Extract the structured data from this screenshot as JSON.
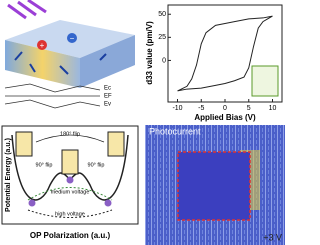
{
  "band_diagram": {
    "charges": [
      "+",
      "−"
    ],
    "levels": [
      "Ec",
      "EF",
      "Ev"
    ]
  },
  "chart_data": {
    "type": "line",
    "xlabel": "Applied Bias (V)",
    "ylabel": "d33 value (pm/V)",
    "x": [
      -10,
      -8,
      -5,
      -2,
      0,
      2,
      4,
      5,
      6,
      7,
      8,
      9,
      10,
      8,
      5,
      2,
      0,
      -2,
      -4,
      -5,
      -6,
      -7,
      -8,
      -10
    ],
    "series": [
      {
        "color": "#222222",
        "values": [
          -33,
          -31,
          -30,
          -27,
          -25,
          -22,
          -18,
          -8,
          15,
          35,
          42,
          45,
          48,
          46,
          45,
          42,
          40,
          38,
          30,
          18,
          -5,
          -20,
          -28,
          -33
        ]
      }
    ],
    "xlim": [
      -12,
      12
    ],
    "ylim": [
      -45,
      60
    ],
    "xticks": [
      -10,
      -5,
      0,
      5,
      10
    ],
    "yticks": [
      0,
      25,
      50
    ]
  },
  "energy_diagram": {
    "ylabel": "Potential Energy (a.u.)",
    "xlabel": "OP Polarization (a.u.)",
    "annotations": [
      "180° flip",
      "90° flip",
      "90° flip",
      "medium voltage",
      "high voltage"
    ]
  },
  "photocurrent": {
    "title": "Photocurrent",
    "voltage": "+3 V"
  }
}
